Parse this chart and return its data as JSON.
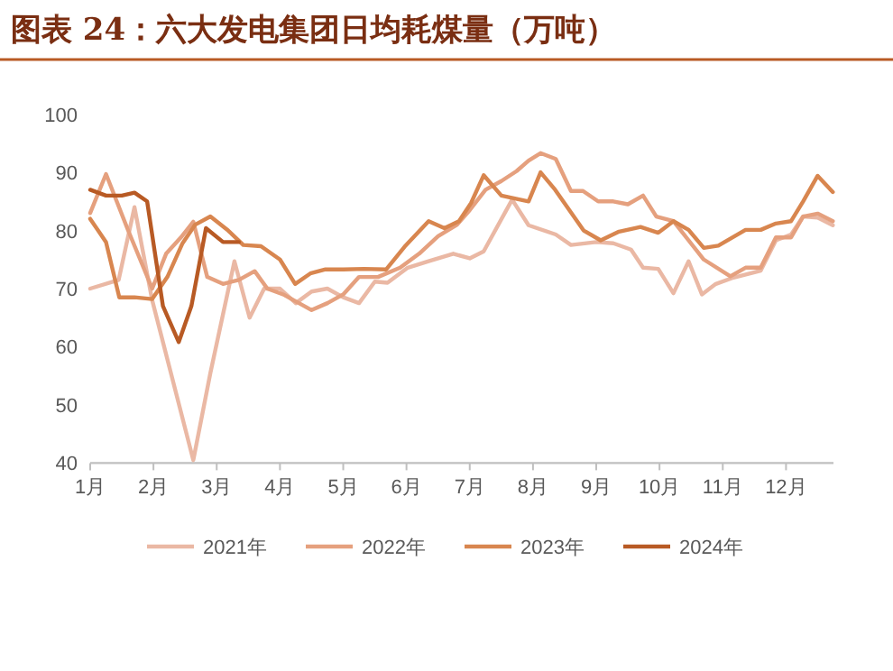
{
  "chart_data": {
    "type": "line",
    "title": "图表 24：六大发电集团日均耗煤量（万吨）",
    "xlim": [
      1,
      12.75
    ],
    "xticks": [
      {
        "value": 1,
        "label": "1月"
      },
      {
        "value": 2,
        "label": "2月"
      },
      {
        "value": 3,
        "label": "3月"
      },
      {
        "value": 4,
        "label": "4月"
      },
      {
        "value": 5,
        "label": "5月"
      },
      {
        "value": 6,
        "label": "6月"
      },
      {
        "value": 7,
        "label": "7月"
      },
      {
        "value": 8,
        "label": "8月"
      },
      {
        "value": 9,
        "label": "9月"
      },
      {
        "value": 10,
        "label": "10月"
      },
      {
        "value": 11,
        "label": "11月"
      },
      {
        "value": 12,
        "label": "12月"
      }
    ],
    "ylim": [
      40,
      100
    ],
    "yticks": [
      40,
      50,
      60,
      70,
      80,
      90,
      100
    ],
    "legend": "bottom",
    "marker": "none",
    "line_style": "solid",
    "grid": false,
    "series": [
      {
        "name": "2021年",
        "color": "#eab8a4",
        "x": [
          1,
          1.45,
          1.7,
          1.98,
          2.63,
          2.9,
          3.28,
          3.52,
          3.75,
          4,
          4.25,
          4.5,
          4.75,
          5,
          5.25,
          5.5,
          5.7,
          6.02,
          6.35,
          6.74,
          7,
          7.22,
          7.67,
          7.93,
          8.36,
          8.6,
          9,
          9.27,
          9.55,
          9.74,
          9.98,
          10.22,
          10.46,
          10.67,
          10.89,
          11.17,
          11.6,
          11.84,
          12.08,
          12.27,
          12.5,
          12.74
        ],
        "values": [
          70,
          71.5,
          84,
          68,
          40.5,
          55.5,
          74.7,
          65,
          70,
          70,
          67.5,
          69.5,
          70,
          68.5,
          67.5,
          71.2,
          71,
          73.6,
          74.7,
          76,
          75.2,
          76.4,
          85.3,
          80.9,
          79.3,
          77.5,
          78,
          77.8,
          76.7,
          73.6,
          73.4,
          69.2,
          74.7,
          69,
          70.8,
          71.9,
          73.1,
          78.3,
          79.3,
          82.4,
          82.2,
          80.9
        ]
      },
      {
        "name": "2022年",
        "color": "#e5a07e",
        "x": [
          1,
          1.25,
          1.6,
          1.98,
          2.2,
          2.45,
          2.63,
          2.85,
          3.1,
          3.35,
          3.6,
          3.8,
          4.05,
          4.3,
          4.5,
          4.75,
          5,
          5.25,
          5.55,
          5.9,
          6.2,
          6.5,
          6.8,
          7,
          7.25,
          7.5,
          7.74,
          7.93,
          8.12,
          8.36,
          8.6,
          8.79,
          9.03,
          9.27,
          9.5,
          9.74,
          9.95,
          10.22,
          10.7,
          11.12,
          11.36,
          11.6,
          11.84,
          12.08,
          12.27,
          12.5,
          12.74
        ],
        "values": [
          83,
          89.7,
          80,
          70,
          76,
          79,
          81.5,
          72,
          70.8,
          71.5,
          73,
          70,
          69,
          67.5,
          66.3,
          67.5,
          69,
          72,
          72,
          73.6,
          76,
          79,
          81,
          83.5,
          87,
          88.5,
          90.2,
          92,
          93.3,
          92.3,
          86.8,
          86.8,
          85,
          85,
          84.5,
          86,
          82.4,
          81.6,
          75,
          72.1,
          73.6,
          73.6,
          78.8,
          78.8,
          82.4,
          82.9,
          81.6
        ]
      },
      {
        "name": "2023年",
        "color": "#d8864f",
        "x": [
          1,
          1.25,
          1.46,
          1.7,
          1.98,
          2.22,
          2.46,
          2.66,
          2.9,
          3.18,
          3.42,
          3.7,
          4,
          4.24,
          4.48,
          4.72,
          5,
          5.33,
          5.68,
          5.97,
          6.35,
          6.6,
          6.83,
          7.02,
          7.22,
          7.5,
          7.93,
          8.12,
          8.35,
          8.8,
          9.07,
          9.36,
          9.7,
          9.98,
          10.22,
          10.46,
          10.7,
          10.93,
          11.36,
          11.6,
          11.84,
          12.08,
          12.27,
          12.5,
          12.74
        ],
        "values": [
          82,
          78,
          68.5,
          68.5,
          68.2,
          72,
          77.8,
          81,
          82.4,
          80,
          77.5,
          77.3,
          75,
          70.8,
          72.6,
          73.3,
          73.3,
          73.4,
          73.3,
          77.2,
          81.6,
          80.4,
          81.6,
          84.7,
          89.5,
          86,
          85,
          90,
          87,
          80,
          78.3,
          79.8,
          80.6,
          79.6,
          81.6,
          80.1,
          77,
          77.4,
          80.1,
          80.1,
          81.2,
          81.6,
          85,
          89.4,
          86.6
        ]
      },
      {
        "name": "2024年",
        "color": "#b85a24",
        "x": [
          1,
          1.25,
          1.5,
          1.7,
          1.9,
          2.15,
          2.4,
          2.6,
          2.83,
          3.1,
          3.35
        ],
        "values": [
          87,
          86,
          86,
          86.5,
          85,
          67,
          60.8,
          67,
          80.4,
          78,
          78
        ]
      }
    ]
  }
}
